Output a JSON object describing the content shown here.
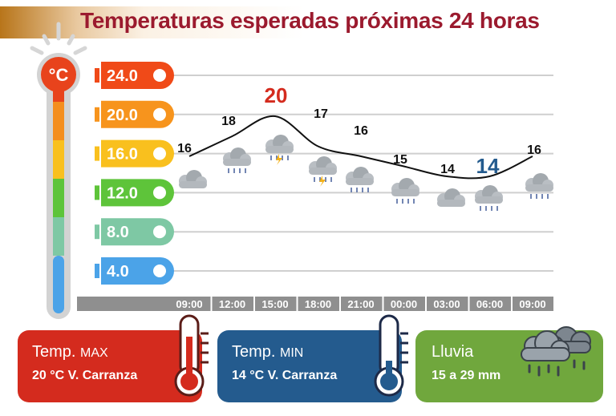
{
  "title": "Temperaturas esperadas próximas 24 horas",
  "unit_badge": "°C",
  "chart_data": {
    "type": "line",
    "title": "Temperaturas esperadas próximas 24 horas",
    "x": [
      "09:00",
      "12:00",
      "15:00",
      "18:00",
      "21:00",
      "00:00",
      "03:00",
      "06:00",
      "09:00"
    ],
    "values": [
      16,
      18,
      20,
      17,
      16,
      15,
      14,
      14,
      16
    ],
    "value_labels": [
      "16",
      "18",
      "20",
      "17",
      "16",
      "15",
      "14",
      "14",
      "16"
    ],
    "highlight": {
      "max_index": 2,
      "min_index": 7
    },
    "weather_icons": [
      "cloud",
      "cloud-rain",
      "cloud-storm",
      "cloud-storm",
      "cloud-rain",
      "cloud-rain",
      "cloud",
      "cloud-rain",
      "cloud-rain"
    ],
    "ylim": [
      0,
      24
    ],
    "y_ticks": [
      "24.0",
      "20.0",
      "16.0",
      "12.0",
      "8.0",
      "4.0"
    ],
    "y_tick_values": [
      24,
      20,
      16,
      12,
      8,
      4
    ],
    "y_tick_colors": [
      "#f04a18",
      "#f7941d",
      "#f9c01e",
      "#5ec43a",
      "#7ec8a4",
      "#4ba3e8"
    ],
    "line_color": "#111111",
    "max_color": "#d42b1e",
    "min_color": "#245b8e",
    "grid": true
  },
  "cards": {
    "max": {
      "label": "Temp.",
      "sub": "MAX",
      "value": "20 °C  V. Carranza",
      "color": "#d42b1e"
    },
    "min": {
      "label": "Temp.",
      "sub": "MIN",
      "value": "14 °C  V. Carranza",
      "color": "#245b8e"
    },
    "rain": {
      "label": "Lluvia",
      "value": "15 a 29 mm",
      "color": "#70a73d"
    }
  }
}
